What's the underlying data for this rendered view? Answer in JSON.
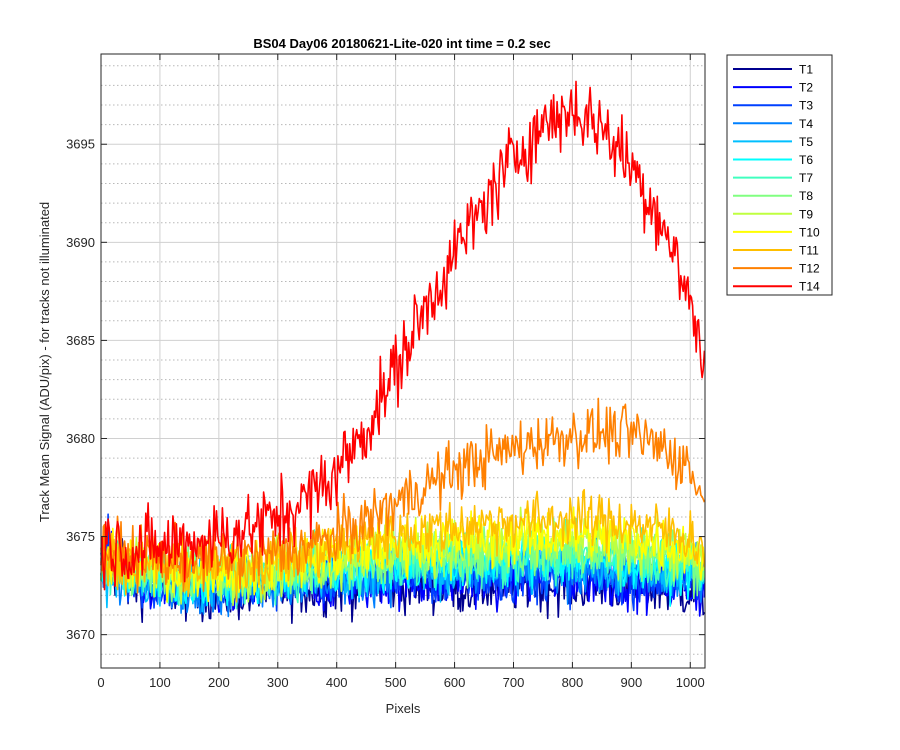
{
  "chart_data": {
    "type": "line",
    "title": "BS04 Day06 20180621-Lite-020 int time = 0.2 sec",
    "xlabel": "Pixels",
    "ylabel": "Track Mean Signal (ADU/pix) - for tracks not illuminated",
    "xlim": [
      0,
      1025
    ],
    "ylim": [
      3668.3,
      3699.6
    ],
    "xticks": [
      0,
      100,
      200,
      300,
      400,
      500,
      600,
      700,
      800,
      900,
      1000
    ],
    "yticks": [
      3670,
      3675,
      3680,
      3685,
      3690,
      3695
    ],
    "y_minor_grid_step": 1,
    "grid": "major and minor, dotted",
    "legend": "outside-right-top",
    "series": [
      {
        "name": "T1",
        "color": "#00008f",
        "x": [
          0,
          100,
          200,
          300,
          400,
          500,
          600,
          700,
          800,
          900,
          1000,
          1024
        ],
        "y": [
          3672.8,
          3672.3,
          3672.0,
          3672.3,
          3672.4,
          3672.6,
          3672.4,
          3672.5,
          3672.6,
          3672.5,
          3672.2,
          3671.8
        ]
      },
      {
        "name": "T2",
        "color": "#0000ff",
        "x": [
          0,
          100,
          200,
          300,
          400,
          500,
          600,
          700,
          800,
          900,
          1000,
          1024
        ],
        "y": [
          3673.0,
          3672.5,
          3672.2,
          3672.5,
          3672.6,
          3672.8,
          3672.7,
          3672.8,
          3672.9,
          3672.8,
          3672.5,
          3672.1
        ]
      },
      {
        "name": "T3",
        "color": "#0040ff",
        "x": [
          0,
          100,
          200,
          300,
          400,
          500,
          600,
          700,
          800,
          900,
          1000,
          1024
        ],
        "y": [
          3673.1,
          3672.6,
          3672.3,
          3672.6,
          3672.8,
          3673.0,
          3672.9,
          3673.0,
          3673.1,
          3673.0,
          3672.7,
          3672.3
        ]
      },
      {
        "name": "T4",
        "color": "#0080ff",
        "x": [
          0,
          100,
          200,
          300,
          400,
          500,
          600,
          700,
          800,
          900,
          1000,
          1024
        ],
        "y": [
          3673.2,
          3672.7,
          3672.4,
          3672.7,
          3672.9,
          3673.1,
          3673.1,
          3673.2,
          3673.3,
          3673.2,
          3672.9,
          3672.5
        ]
      },
      {
        "name": "T5",
        "color": "#00bfff",
        "x": [
          0,
          100,
          200,
          300,
          400,
          500,
          600,
          700,
          800,
          900,
          1000,
          1024
        ],
        "y": [
          3673.3,
          3672.8,
          3672.6,
          3672.9,
          3673.1,
          3673.4,
          3673.4,
          3673.5,
          3673.6,
          3673.5,
          3673.2,
          3672.7
        ]
      },
      {
        "name": "T6",
        "color": "#00ffff",
        "x": [
          0,
          100,
          200,
          300,
          400,
          500,
          600,
          700,
          800,
          900,
          1000,
          1024
        ],
        "y": [
          3673.4,
          3672.9,
          3672.7,
          3673.0,
          3673.3,
          3673.6,
          3673.6,
          3673.8,
          3673.9,
          3673.8,
          3673.4,
          3672.9
        ]
      },
      {
        "name": "T7",
        "color": "#40ffbf",
        "x": [
          0,
          100,
          200,
          300,
          400,
          500,
          600,
          700,
          800,
          900,
          1000,
          1024
        ],
        "y": [
          3673.5,
          3673.0,
          3672.8,
          3673.1,
          3673.4,
          3673.8,
          3673.8,
          3674.0,
          3674.1,
          3674.0,
          3673.6,
          3673.1
        ]
      },
      {
        "name": "T8",
        "color": "#80ff80",
        "x": [
          0,
          100,
          200,
          300,
          400,
          500,
          600,
          700,
          800,
          900,
          1000,
          1024
        ],
        "y": [
          3673.6,
          3673.1,
          3672.9,
          3673.2,
          3673.6,
          3674.0,
          3674.1,
          3674.3,
          3674.4,
          3674.3,
          3673.9,
          3673.3
        ]
      },
      {
        "name": "T9",
        "color": "#bfff40",
        "x": [
          0,
          100,
          200,
          300,
          400,
          500,
          600,
          700,
          800,
          900,
          1000,
          1024
        ],
        "y": [
          3673.7,
          3673.2,
          3673.0,
          3673.4,
          3673.8,
          3674.3,
          3674.4,
          3674.6,
          3674.7,
          3674.6,
          3674.1,
          3673.5
        ]
      },
      {
        "name": "T10",
        "color": "#ffff00",
        "x": [
          0,
          100,
          200,
          300,
          400,
          500,
          600,
          700,
          800,
          900,
          1000,
          1024
        ],
        "y": [
          3673.9,
          3673.4,
          3673.2,
          3673.6,
          3674.1,
          3674.6,
          3674.8,
          3675.0,
          3675.1,
          3675.0,
          3674.5,
          3673.8
        ]
      },
      {
        "name": "T11",
        "color": "#ffbf00",
        "x": [
          0,
          100,
          200,
          300,
          400,
          500,
          600,
          700,
          800,
          900,
          1000,
          1024
        ],
        "y": [
          3674.1,
          3673.6,
          3673.4,
          3673.8,
          3674.5,
          3675.1,
          3675.5,
          3675.8,
          3675.9,
          3675.7,
          3675.0,
          3674.2
        ]
      },
      {
        "name": "T12",
        "color": "#ff8000",
        "x": [
          0,
          50,
          100,
          150,
          200,
          250,
          300,
          350,
          400,
          450,
          500,
          550,
          600,
          650,
          700,
          750,
          800,
          850,
          900,
          950,
          1000,
          1024
        ],
        "y": [
          3674.5,
          3674.1,
          3673.9,
          3673.8,
          3673.8,
          3674.0,
          3674.2,
          3674.5,
          3675.0,
          3675.8,
          3676.7,
          3677.6,
          3678.4,
          3679.0,
          3679.5,
          3679.9,
          3680.2,
          3680.3,
          3680.2,
          3679.6,
          3678.5,
          3676.5
        ]
      },
      {
        "name": "T14",
        "color": "#ff0000",
        "x": [
          0,
          50,
          100,
          150,
          200,
          250,
          300,
          350,
          400,
          450,
          500,
          550,
          600,
          650,
          700,
          750,
          800,
          850,
          900,
          950,
          1000,
          1024
        ],
        "y": [
          3674.7,
          3674.3,
          3674.4,
          3674.8,
          3675.0,
          3675.4,
          3676.0,
          3676.9,
          3678.3,
          3680.5,
          3683.5,
          3686.6,
          3689.4,
          3691.9,
          3694.3,
          3696.0,
          3696.8,
          3695.9,
          3693.9,
          3691.2,
          3687.0,
          3683.5
        ]
      }
    ]
  }
}
